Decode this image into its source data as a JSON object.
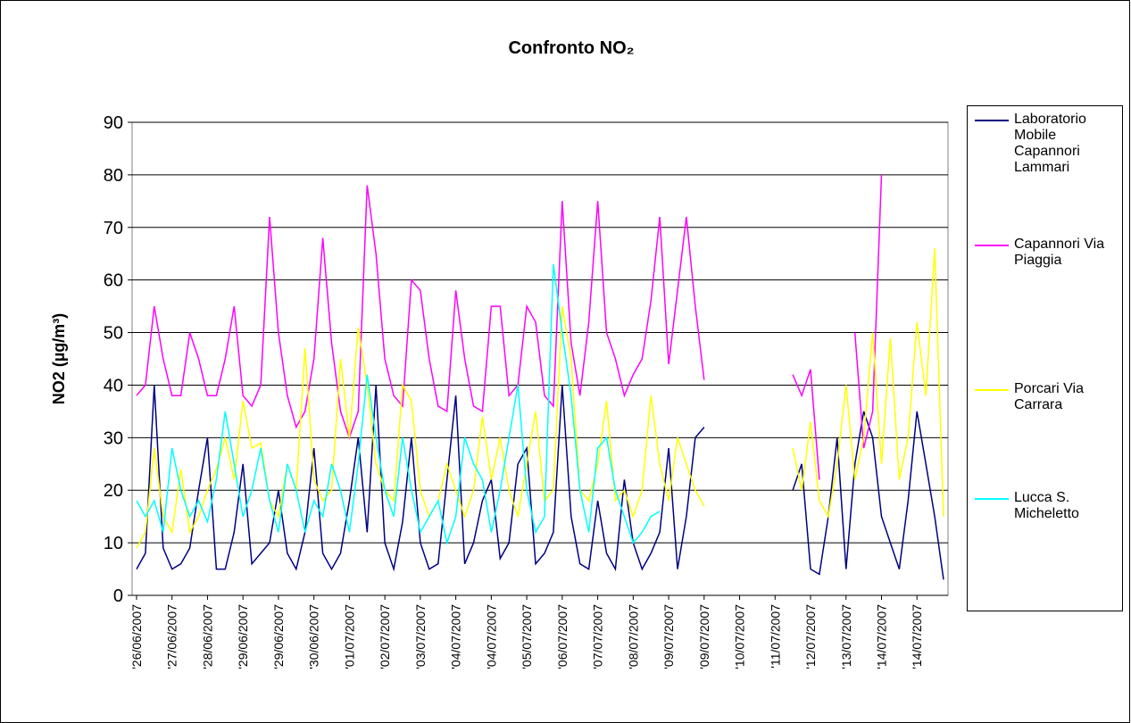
{
  "chart_data": {
    "type": "line",
    "title": "Confronto NO₂",
    "y_label": "NO2 (µg/m³)",
    "categories": [
      "'26/06/2007",
      null,
      null,
      null,
      "'27/06/2007",
      null,
      null,
      null,
      "'28/06/2007",
      null,
      null,
      null,
      "'29/06/2007",
      null,
      null,
      null,
      "'29/06/2007",
      null,
      null,
      null,
      "'30/06/2007",
      null,
      null,
      null,
      "'01/07/2007",
      null,
      null,
      null,
      "'02/07/2007",
      null,
      null,
      null,
      "'03/07/2007",
      null,
      null,
      null,
      "'04/07/2007",
      null,
      null,
      null,
      "'04/07/2007",
      null,
      null,
      null,
      "'05/07/2007",
      null,
      null,
      null,
      "'06/07/2007",
      null,
      null,
      null,
      "'07/07/2007",
      null,
      null,
      null,
      "'08/07/2007",
      null,
      null,
      null,
      "'09/07/2007",
      null,
      null,
      null,
      "'09/07/2007",
      null,
      null,
      null,
      "'10/07/2007",
      null,
      null,
      null,
      "'11/07/2007",
      null,
      null,
      null,
      "'12/07/2007",
      null,
      null,
      null,
      "'13/07/2007",
      null,
      null,
      null,
      "'14/07/2007",
      null,
      null,
      null,
      "'14/07/2007",
      null,
      null,
      null
    ],
    "series": [
      {
        "name": "Laboratorio Mobile Capannori Lammari",
        "color": "#000080",
        "values": [
          5,
          8,
          40,
          9,
          5,
          6,
          9,
          20,
          30,
          5,
          5,
          12,
          25,
          6,
          8,
          10,
          20,
          8,
          5,
          12,
          28,
          8,
          5,
          8,
          18,
          30,
          12,
          40,
          10,
          5,
          14,
          30,
          10,
          5,
          6,
          22,
          38,
          6,
          10,
          18,
          22,
          7,
          10,
          25,
          28,
          6,
          8,
          12,
          40,
          15,
          6,
          5,
          18,
          8,
          5,
          22,
          10,
          5,
          8,
          12,
          28,
          5,
          15,
          30,
          32,
          null,
          null,
          null,
          null,
          null,
          null,
          null,
          null,
          null,
          20,
          25,
          5,
          4,
          15,
          30,
          5,
          25,
          35,
          30,
          15,
          10,
          5,
          18,
          35,
          25,
          15,
          3
        ]
      },
      {
        "name": "Capannori Via Piaggia",
        "color": "#ff00ff",
        "values": [
          38,
          40,
          55,
          45,
          38,
          38,
          50,
          45,
          38,
          38,
          45,
          55,
          38,
          36,
          40,
          72,
          50,
          38,
          32,
          35,
          45,
          68,
          48,
          35,
          30,
          35,
          78,
          65,
          45,
          38,
          36,
          60,
          58,
          45,
          36,
          35,
          58,
          45,
          36,
          35,
          55,
          55,
          38,
          40,
          55,
          52,
          38,
          36,
          75,
          48,
          38,
          52,
          75,
          50,
          45,
          38,
          42,
          45,
          56,
          72,
          44,
          58,
          72,
          55,
          41,
          null,
          null,
          null,
          null,
          null,
          null,
          null,
          null,
          null,
          42,
          38,
          43,
          22,
          null,
          null,
          null,
          50,
          28,
          35,
          80,
          null,
          null,
          null,
          null,
          null,
          null,
          null
        ]
      },
      {
        "name": "Porcari Via Carrara",
        "color": "#ffff00",
        "values": [
          9,
          12,
          28,
          15,
          12,
          24,
          12,
          15,
          20,
          24,
          30,
          22,
          37,
          28,
          29,
          18,
          15,
          25,
          20,
          47,
          22,
          18,
          20,
          45,
          30,
          51,
          40,
          25,
          20,
          18,
          40,
          37,
          20,
          15,
          18,
          25,
          20,
          15,
          20,
          34,
          22,
          30,
          20,
          15,
          25,
          35,
          18,
          20,
          55,
          45,
          20,
          18,
          25,
          37,
          18,
          20,
          15,
          20,
          38,
          25,
          18,
          30,
          25,
          20,
          17,
          null,
          null,
          null,
          null,
          null,
          null,
          null,
          null,
          null,
          28,
          20,
          33,
          18,
          15,
          25,
          40,
          22,
          30,
          50,
          25,
          49,
          22,
          30,
          52,
          38,
          66,
          15
        ]
      },
      {
        "name": "Lucca S. Micheletto",
        "color": "#00ffff",
        "values": [
          18,
          15,
          18,
          12,
          28,
          20,
          15,
          18,
          14,
          22,
          35,
          25,
          15,
          20,
          28,
          18,
          12,
          25,
          20,
          12,
          18,
          15,
          25,
          20,
          12,
          25,
          42,
          30,
          20,
          15,
          30,
          20,
          12,
          15,
          18,
          10,
          15,
          30,
          25,
          22,
          12,
          20,
          30,
          40,
          20,
          12,
          15,
          63,
          50,
          38,
          20,
          12,
          28,
          30,
          20,
          15,
          10,
          12,
          15,
          16,
          null,
          null,
          null,
          null,
          null,
          null,
          null,
          null,
          null,
          null,
          null,
          null,
          null,
          null,
          null,
          null,
          null,
          null,
          null,
          null,
          null,
          null,
          null,
          null,
          null,
          null,
          null,
          null,
          null,
          null,
          null,
          null
        ]
      }
    ],
    "ylim": [
      0,
      90
    ],
    "yticks": [
      0,
      10,
      20,
      30,
      40,
      50,
      60,
      70,
      80,
      90
    ],
    "grid": true,
    "legend": "right"
  }
}
